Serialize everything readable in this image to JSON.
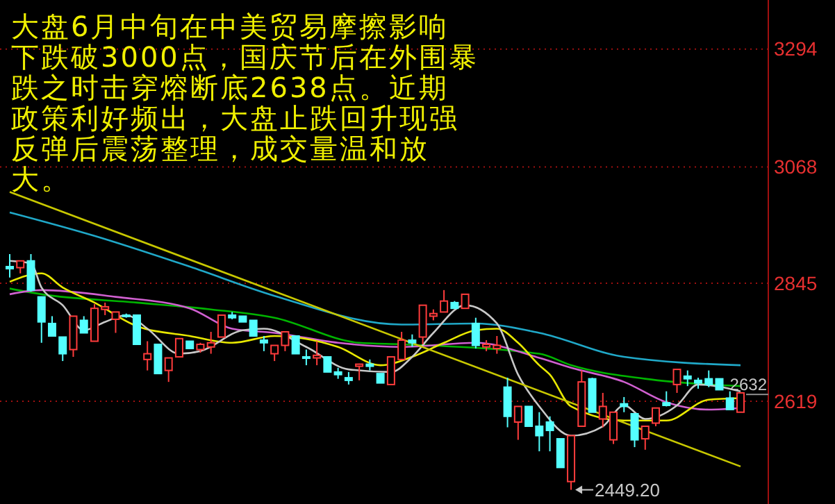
{
  "chart_data": {
    "type": "candlestick",
    "annotations": [
      "大盘6月中旬在中美贸易摩擦影响",
      "下跌破3000点，国庆节后在外围暴",
      "跌之时击穿熔断底2638点。近期",
      "政策利好频出，大盘止跌回升现强",
      "反弹后震荡整理，成交量温和放",
      "大。",
      "2449.20"
    ],
    "ref_lines": [
      {
        "axis": "y",
        "value": 2632,
        "label": "2632"
      }
    ],
    "categories": [
      null,
      null,
      null,
      null,
      null,
      null,
      null,
      null,
      null,
      null,
      null,
      null,
      null,
      null,
      null,
      null,
      null,
      null,
      null,
      null,
      null,
      null,
      null,
      null,
      null,
      null,
      null,
      null,
      null,
      null,
      null,
      null,
      null,
      null,
      null,
      null,
      null,
      null,
      null,
      null,
      null,
      null,
      null,
      null,
      null,
      null,
      null,
      null,
      null,
      null,
      null,
      null,
      null,
      null,
      null,
      null,
      null,
      null,
      null,
      null,
      null,
      null,
      null,
      null,
      null,
      null,
      null,
      null,
      null,
      null
    ],
    "ohlc": [
      [
        2877,
        2901,
        2856,
        2873
      ],
      [
        2875,
        2888,
        2864,
        2888
      ],
      [
        2888,
        2901,
        2829,
        2832
      ],
      [
        2819,
        2819,
        2731,
        2771
      ],
      [
        2768,
        2782,
        2744,
        2744
      ],
      [
        2742,
        2742,
        2696,
        2710
      ],
      [
        2718,
        2782,
        2704,
        2782
      ],
      [
        2774,
        2782,
        2750,
        2750
      ],
      [
        2734,
        2805,
        2734,
        2797
      ],
      [
        2795,
        2808,
        2784,
        2800
      ],
      [
        2776,
        2790,
        2750,
        2790
      ],
      [
        2784,
        2787,
        2779,
        2782
      ],
      [
        2784,
        2784,
        2728,
        2728
      ],
      [
        2699,
        2734,
        2678,
        2710
      ],
      [
        2728,
        2728,
        2672,
        2672
      ],
      [
        2678,
        2702,
        2656,
        2702
      ],
      [
        2704,
        2739,
        2704,
        2739
      ],
      [
        2734,
        2734,
        2720,
        2720
      ],
      [
        2718,
        2731,
        2712,
        2728
      ],
      [
        2723,
        2752,
        2710,
        2731
      ],
      [
        2742,
        2784,
        2742,
        2784
      ],
      [
        2784,
        2790,
        2776,
        2779
      ],
      [
        2782,
        2782,
        2771,
        2771
      ],
      [
        2774,
        2774,
        2744,
        2744
      ],
      [
        2736,
        2744,
        2715,
        2731
      ],
      [
        2710,
        2726,
        2696,
        2726
      ],
      [
        2726,
        2752,
        2715,
        2752
      ],
      [
        2744,
        2744,
        2710,
        2710
      ],
      [
        2704,
        2718,
        2688,
        2702
      ],
      [
        2702,
        2734,
        2688,
        2707
      ],
      [
        2704,
        2704,
        2675,
        2675
      ],
      [
        2675,
        2683,
        2662,
        2670
      ],
      [
        2664,
        2675,
        2651,
        2659
      ],
      [
        2686,
        2691,
        2659,
        2690
      ],
      [
        2690,
        2699,
        2678,
        2686
      ],
      [
        2672,
        2672,
        2654,
        2654
      ],
      [
        2651,
        2704,
        2651,
        2704
      ],
      [
        2699,
        2752,
        2699,
        2736
      ],
      [
        2736,
        2747,
        2723,
        2731
      ],
      [
        2742,
        2803,
        2728,
        2803
      ],
      [
        2782,
        2795,
        2774,
        2787
      ],
      [
        2790,
        2832,
        2790,
        2811
      ],
      [
        2808,
        2811,
        2797,
        2797
      ],
      [
        2797,
        2824,
        2797,
        2824
      ],
      [
        2768,
        2779,
        2720,
        2726
      ],
      [
        2723,
        2736,
        2715,
        2728
      ],
      [
        2720,
        2744,
        2710,
        2726
      ],
      [
        2646,
        2664,
        2569,
        2590
      ],
      [
        2579,
        2609,
        2545,
        2609
      ],
      [
        2609,
        2609,
        2571,
        2571
      ],
      [
        2571,
        2598,
        2523,
        2553
      ],
      [
        2579,
        2590,
        2523,
        2563
      ],
      [
        2547,
        2547,
        2492,
        2492
      ],
      [
        2465,
        2553,
        2449.2,
        2553
      ],
      [
        2571,
        2678,
        2571,
        2656
      ],
      [
        2662,
        2664,
        2598,
        2598
      ],
      [
        2585,
        2635,
        2569,
        2609
      ],
      [
        2545,
        2598,
        2537,
        2598
      ],
      [
        2614,
        2627,
        2598,
        2609
      ],
      [
        2595,
        2595,
        2531,
        2545
      ],
      [
        2547,
        2571,
        2526,
        2571
      ],
      [
        2577,
        2606,
        2571,
        2606
      ],
      [
        2616,
        2638,
        2609,
        2611
      ],
      [
        2651,
        2680,
        2635,
        2680
      ],
      [
        2667,
        2678,
        2648,
        2662
      ],
      [
        2659,
        2664,
        2643,
        2654
      ],
      [
        2662,
        2678,
        2646,
        2651
      ],
      [
        2662,
        2662,
        2641,
        2641
      ],
      [
        2625,
        2638,
        2603,
        2603
      ],
      [
        2598,
        2635,
        2598,
        2635
      ]
    ],
    "series": [
      {
        "type": "line",
        "color": "#20a8c8",
        "values": [
          2981,
          null,
          null,
          null,
          null,
          null,
          null,
          null,
          2936,
          null,
          null,
          null,
          null,
          null,
          null,
          null,
          null,
          2877,
          null,
          null,
          null,
          null,
          null,
          null,
          null,
          2821,
          null,
          null,
          null,
          null,
          null,
          null,
          null,
          null,
          null,
          null,
          null,
          2766,
          null,
          null,
          null,
          null,
          null,
          null,
          2768,
          null,
          null,
          null,
          null,
          null,
          2750,
          null,
          null,
          null,
          null,
          null,
          null,
          null,
          2704,
          null,
          null,
          null,
          null,
          null,
          null,
          null,
          null,
          null,
          null,
          2688
        ]
      },
      {
        "type": "line",
        "color": "#00b400",
        "values": [
          2835,
          null,
          null,
          2824,
          null,
          null,
          null,
          null,
          null,
          null,
          null,
          null,
          2808,
          null,
          null,
          null,
          null,
          null,
          null,
          2795,
          null,
          null,
          null,
          null,
          null,
          2779,
          null,
          null,
          null,
          null,
          null,
          null,
          null,
          2731,
          null,
          null,
          null,
          2728,
          null,
          null,
          null,
          null,
          null,
          null,
          null,
          null,
          null,
          null,
          null,
          null,
          2710,
          null,
          null,
          2688,
          null,
          null,
          null,
          null,
          null,
          null,
          2662,
          null,
          null,
          null,
          null,
          null,
          null,
          null,
          null,
          2648
        ]
      },
      {
        "type": "line",
        "color": "#d060d0",
        "values": [
          2824,
          null,
          null,
          2832,
          null,
          null,
          null,
          null,
          null,
          null,
          2819,
          null,
          null,
          null,
          null,
          null,
          null,
          2797,
          null,
          null,
          null,
          2758,
          null,
          null,
          null,
          2750,
          null,
          null,
          null,
          null,
          null,
          2731,
          null,
          null,
          null,
          null,
          null,
          2723,
          null,
          null,
          null,
          null,
          null,
          null,
          2731,
          null,
          null,
          null,
          null,
          null,
          2702,
          null,
          null,
          2683,
          null,
          null,
          null,
          null,
          2656,
          null,
          null,
          null,
          2617,
          null,
          null,
          null,
          2603,
          null,
          null,
          2606
        ]
      },
      {
        "type": "line",
        "color": "#e8e800",
        "values": [
          2848,
          null,
          null,
          2864,
          null,
          2837,
          null,
          null,
          2808,
          null,
          null,
          null,
          2763,
          null,
          null,
          null,
          null,
          2744,
          null,
          null,
          null,
          2731,
          null,
          null,
          null,
          2744,
          null,
          null,
          null,
          null,
          null,
          2723,
          null,
          null,
          null,
          2688,
          null,
          null,
          2704,
          null,
          null,
          2731,
          null,
          null,
          2755,
          null,
          2758,
          null,
          2731,
          null,
          2688,
          2670,
          null,
          2609,
          null,
          null,
          null,
          null,
          2582,
          null,
          null,
          null,
          2582,
          null,
          null,
          null,
          2622,
          null,
          null,
          2625
        ]
      },
      {
        "type": "line",
        "color": "#c8c8c8",
        "values": [
          2888,
          null,
          2883,
          2837,
          null,
          2803,
          null,
          2755,
          null,
          2771,
          null,
          2784,
          null,
          2758,
          null,
          null,
          2710,
          null,
          2715,
          null,
          null,
          null,
          2755,
          null,
          2758,
          null,
          null,
          null,
          2723,
          null,
          null,
          null,
          2680,
          null,
          null,
          null,
          2675,
          null,
          2704,
          null,
          2750,
          null,
          null,
          2803,
          null,
          null,
          2768,
          null,
          2670,
          null,
          2609,
          null,
          null,
          2553,
          null,
          null,
          2571,
          null,
          2611,
          null,
          2585,
          null,
          null,
          2611,
          null,
          2651,
          null,
          null,
          null,
          2638
        ]
      },
      {
        "type": "line",
        "color": "#c8c800",
        "values": [
          3020,
          null,
          null,
          null,
          null,
          null,
          null,
          null,
          null,
          null,
          null,
          null,
          null,
          null,
          null,
          null,
          null,
          null,
          null,
          null,
          null,
          null,
          null,
          null,
          null,
          null,
          null,
          null,
          null,
          null,
          null,
          null,
          null,
          null,
          null,
          null,
          null,
          null,
          null,
          null,
          null,
          null,
          null,
          null,
          null,
          null,
          null,
          null,
          null,
          null,
          null,
          null,
          null,
          null,
          null,
          null,
          null,
          null,
          null,
          null,
          null,
          null,
          null,
          null,
          null,
          null,
          null,
          null,
          null,
          2494
        ]
      }
    ],
    "ylim": [
      2422,
      3388
    ],
    "yticks": [
      2619,
      2845,
      3068,
      3294
    ],
    "grid": "y"
  }
}
